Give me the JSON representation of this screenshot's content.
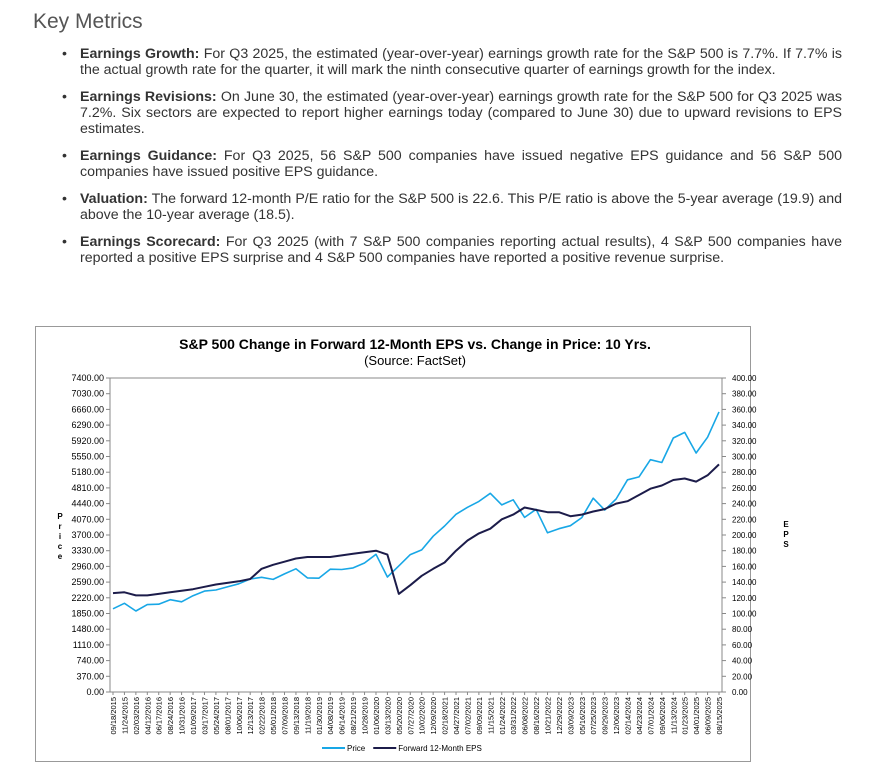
{
  "heading": "Key Metrics",
  "bullets": [
    {
      "label": "Earnings Growth:",
      "text": "For Q3 2025, the estimated (year-over-year) earnings growth rate for the S&P 500 is 7.7%. If 7.7% is the actual growth rate for the quarter, it will mark the ninth consecutive quarter of earnings growth for the index."
    },
    {
      "label": "Earnings Revisions:",
      "text": "On June 30, the estimated (year-over-year) earnings growth rate for the S&P 500 for Q3 2025 was 7.2%. Six sectors are expected to report higher earnings today (compared to June 30) due to upward revisions to EPS estimates."
    },
    {
      "label": "Earnings Guidance:",
      "text": "For Q3 2025, 56 S&P 500 companies have issued negative EPS guidance and 56 S&P 500 companies have issued positive EPS guidance."
    },
    {
      "label": "Valuation:",
      "text": "The forward 12-month P/E ratio for the S&P 500 is 22.6. This P/E ratio is above the 5-year average (19.9) and above the 10-year average (18.5)."
    },
    {
      "label": "Earnings Scorecard:",
      "text": "For Q3 2025 (with 7 S&P 500 companies reporting actual results), 4 S&P 500 companies have reported a positive EPS surprise and 4 S&P 500 companies have reported a positive revenue surprise."
    }
  ],
  "chart_data": {
    "type": "line",
    "title": "S&P 500 Change in Forward 12-Month EPS vs. Change in Price: 10 Yrs.",
    "subtitle": "(Source: FactSet)",
    "y_label": "Price",
    "y2_label": "EPS",
    "categories": [
      "09/18/2015",
      "11/24/2015",
      "02/03/2016",
      "04/12/2016",
      "06/17/2016",
      "08/24/2016",
      "10/31/2016",
      "01/09/2017",
      "03/17/2017",
      "05/24/2017",
      "08/01/2017",
      "10/06/2017",
      "12/13/2017",
      "02/22/2018",
      "05/01/2018",
      "07/09/2018",
      "09/13/2018",
      "11/19/2018",
      "01/30/2019",
      "04/08/2019",
      "06/14/2019",
      "08/21/2019",
      "10/28/2019",
      "01/06/2020",
      "03/13/2020",
      "05/20/2020",
      "07/27/2020",
      "10/02/2020",
      "12/09/2020",
      "02/18/2021",
      "04/27/2021",
      "07/02/2021",
      "09/09/2021",
      "11/15/2021",
      "01/24/2022",
      "03/31/2022",
      "06/08/2022",
      "08/16/2022",
      "10/21/2022",
      "12/29/2022",
      "03/09/2023",
      "05/16/2023",
      "07/25/2023",
      "09/29/2023",
      "12/06/2023",
      "02/14/2024",
      "04/23/2024",
      "07/01/2024",
      "09/06/2024",
      "11/13/2024",
      "01/23/2025",
      "04/01/2025",
      "06/09/2025",
      "08/15/2025"
    ],
    "series": [
      {
        "name": "Price",
        "color": "#18a7e6",
        "values": [
          1960,
          2090,
          1910,
          2060,
          2070,
          2175,
          2126,
          2270,
          2378,
          2404,
          2476,
          2549,
          2662,
          2703,
          2654,
          2784,
          2904,
          2690,
          2681,
          2895,
          2887,
          2924,
          3039,
          3246,
          2711,
          2971,
          3239,
          3348,
          3672,
          3913,
          4187,
          4352,
          4493,
          4682,
          4410,
          4530,
          4115,
          4305,
          3752,
          3849,
          3918,
          4110,
          4567,
          4288,
          4549,
          5000,
          5070,
          5475,
          5408,
          5985,
          6119,
          5633,
          6006,
          6600
        ]
      },
      {
        "name": "Forward 12-Month EPS",
        "color": "#1c1c4a",
        "axis": "y2",
        "values": [
          126,
          127,
          123,
          123,
          125,
          127,
          129,
          131,
          134,
          137,
          139,
          141,
          144,
          157,
          162,
          166,
          170,
          172,
          172,
          172,
          174,
          176,
          178,
          180,
          175,
          125,
          136,
          148,
          157,
          165,
          180,
          193,
          202,
          208,
          220,
          226,
          235,
          232,
          229,
          229,
          224,
          226,
          230,
          233,
          240,
          243,
          251,
          259,
          263,
          270,
          272,
          268,
          276,
          290
        ]
      }
    ],
    "ylim": [
      0,
      7400
    ],
    "yticks": [
      {
        "value": 0,
        "label": "0.00"
      },
      {
        "value": 370,
        "label": "370.00"
      },
      {
        "value": 740,
        "label": "740.00"
      },
      {
        "value": 1110,
        "label": "1110.00"
      },
      {
        "value": 1480,
        "label": "1480.00"
      },
      {
        "value": 1850,
        "label": "1850.00"
      },
      {
        "value": 2220,
        "label": "2220.00"
      },
      {
        "value": 2590,
        "label": "2590.00"
      },
      {
        "value": 2960,
        "label": "2960.00"
      },
      {
        "value": 3330,
        "label": "3330.00"
      },
      {
        "value": 3700,
        "label": "3700.00"
      },
      {
        "value": 4070,
        "label": "4070.00"
      },
      {
        "value": 4440,
        "label": "4440.00"
      },
      {
        "value": 4810,
        "label": "4810.00"
      },
      {
        "value": 5180,
        "label": "5180.00"
      },
      {
        "value": 5550,
        "label": "5550.00"
      },
      {
        "value": 5920,
        "label": "5920.00"
      },
      {
        "value": 6290,
        "label": "6290.00"
      },
      {
        "value": 6660,
        "label": "6660.00"
      },
      {
        "value": 7030,
        "label": "7030.00"
      },
      {
        "value": 7400,
        "label": "7400.00"
      }
    ],
    "y2lim": [
      0,
      400
    ],
    "y2ticks": [
      {
        "value": 0,
        "label": "0.00"
      },
      {
        "value": 20,
        "label": "20.00"
      },
      {
        "value": 40,
        "label": "40.00"
      },
      {
        "value": 60,
        "label": "60.00"
      },
      {
        "value": 80,
        "label": "80.00"
      },
      {
        "value": 100,
        "label": "100.00"
      },
      {
        "value": 120,
        "label": "120.00"
      },
      {
        "value": 140,
        "label": "140.00"
      },
      {
        "value": 160,
        "label": "160.00"
      },
      {
        "value": 180,
        "label": "180.00"
      },
      {
        "value": 200,
        "label": "200.00"
      },
      {
        "value": 220,
        "label": "220.00"
      },
      {
        "value": 240,
        "label": "240.00"
      },
      {
        "value": 260,
        "label": "260.00"
      },
      {
        "value": 280,
        "label": "280.00"
      },
      {
        "value": 300,
        "label": "300.00"
      },
      {
        "value": 320,
        "label": "320.00"
      },
      {
        "value": 340,
        "label": "340.00"
      },
      {
        "value": 360,
        "label": "360.00"
      },
      {
        "value": 380,
        "label": "380.00"
      },
      {
        "value": 400,
        "label": "400.00"
      }
    ],
    "legend": "bottom"
  }
}
